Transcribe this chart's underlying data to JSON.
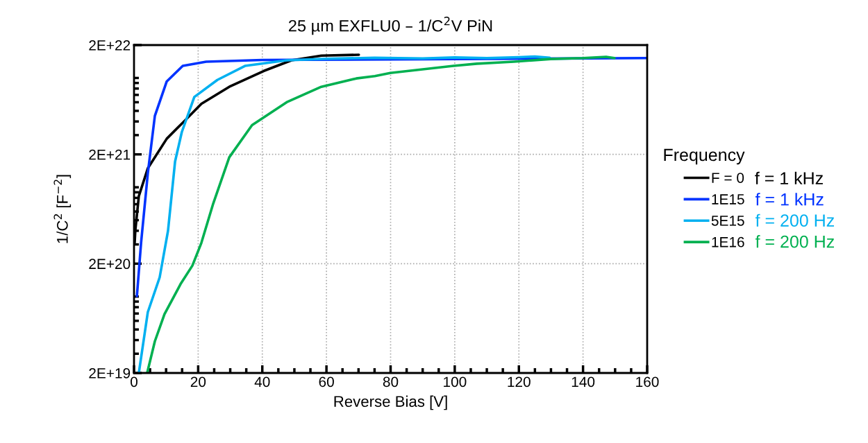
{
  "chart_data": {
    "type": "line",
    "title": "25 µm EXFLU0 – 1/C$^{2}$V PiN",
    "xlabel": "Reverse Bias [V]",
    "ylabel": "1/C$^{2}$ [F$^{−2}$]",
    "legend_title": "Frequency",
    "log": "y",
    "grid": true,
    "legend": "right",
    "line_style": "solid",
    "marker": "none",
    "xlim": [
      0,
      160
    ],
    "xticks": [
      0,
      20,
      40,
      60,
      80,
      100,
      120,
      140,
      160
    ],
    "ylim": [
      2e+19,
      2e+22
    ],
    "yticks": [
      {
        "value": 2e+19,
        "label": "2E+19"
      },
      {
        "value": 2e+20,
        "label": "2E+20"
      },
      {
        "value": 2e+21,
        "label": "2E+21"
      },
      {
        "value": 2e+22,
        "label": "2E+22"
      }
    ],
    "annotations": [
      "f = 1 kHz",
      "f = 1 kHz",
      "f = 200 Hz",
      "f = 200 Hz"
    ],
    "series": [
      {
        "name": "F = 0",
        "color": "#000000",
        "x": [
          0.2,
          0.4,
          1.5,
          4.3,
          10.2,
          15.2,
          21,
          29.7,
          40.5,
          49.1,
          58.4,
          70.1
        ],
        "values": [
          3.1e+20,
          4e+20,
          8.3e+20,
          1.49e+21,
          2.78e+21,
          3.9e+21,
          5.8e+21,
          8.3e+21,
          1.16e+22,
          1.45e+22,
          1.6e+22,
          1.63e+22
        ]
      },
      {
        "name": "1E15",
        "color": "#0033ff",
        "x": [
          0.9,
          2.2,
          4.3,
          6.5,
          10.2,
          15.2,
          22.5,
          40,
          80,
          120,
          160
        ],
        "values": [
          1.01e+20,
          3.1e+20,
          1.34e+21,
          4.5e+21,
          9.3e+21,
          1.29e+22,
          1.41e+22,
          1.46e+22,
          1.48e+22,
          1.5e+22,
          1.52e+22
        ]
      },
      {
        "name": "5E15",
        "color": "#00b0f0",
        "x": [
          1.5,
          4.3,
          8.0,
          10.6,
          12.8,
          14.9,
          18.8,
          26,
          34.6,
          47.6,
          60,
          75,
          90,
          100,
          110,
          120,
          125,
          129.6
        ],
        "values": [
          2e+19,
          7.2e+19,
          1.5e+20,
          4e+20,
          1.72e+21,
          3.2e+21,
          6.7e+21,
          9.6e+21,
          1.29e+22,
          1.45e+22,
          1.5e+22,
          1.53e+22,
          1.51e+22,
          1.54e+22,
          1.52e+22,
          1.55e+22,
          1.57e+22,
          1.53e+22
        ]
      },
      {
        "name": "1E16",
        "color": "#00b050",
        "x": [
          4.1,
          6.5,
          9.5,
          14.5,
          18.2,
          21,
          24.7,
          29.7,
          36.8,
          47.6,
          58.4,
          69.3,
          75.1,
          79.9,
          99.6,
          106.9,
          118.4,
          129.9,
          140,
          147.2,
          149.8
        ],
        "values": [
          2e+19,
          3.9e+19,
          6.9e+19,
          1.3e+20,
          1.92e+20,
          3.1e+20,
          7.1e+20,
          1.88e+21,
          3.7e+21,
          6e+21,
          8.3e+21,
          9.9e+21,
          1.04e+22,
          1.11e+22,
          1.29e+22,
          1.35e+22,
          1.41e+22,
          1.49e+22,
          1.52e+22,
          1.56e+22,
          1.52e+22
        ]
      }
    ]
  }
}
